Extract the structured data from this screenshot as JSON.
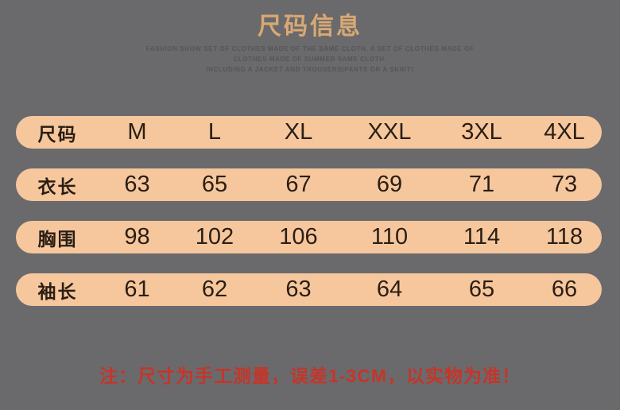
{
  "header": {
    "title": "尺码信息",
    "subtitle_lines": [
      "FASHION SHOW  SET OF CLOTHES MADE OF THE SAME CLOTH. A SET OF CLOTHES MADE OF",
      "CLOTHES MADE OF SUMMER SAME CLOTH.",
      "INCLUDING A JACKET AND TROUSERS(PANTS OR A SKIRT)"
    ]
  },
  "chart_data": {
    "type": "table",
    "title": "尺码信息",
    "header_row": [
      "尺码",
      "M",
      "L",
      "XL",
      "XXL",
      "3XL",
      "4XL"
    ],
    "rows": [
      [
        "衣长",
        "63",
        "65",
        "67",
        "69",
        "71",
        "73"
      ],
      [
        "胸围",
        "98",
        "102",
        "106",
        "110",
        "114",
        "118"
      ],
      [
        "袖长",
        "61",
        "62",
        "63",
        "64",
        "65",
        "66"
      ]
    ]
  },
  "footer": {
    "note": "注：尺寸为手工测量，误差1-3CM，以实物为准！"
  },
  "colors": {
    "background": "#6a6a6c",
    "pill": "#f6c79d",
    "pill_text": "#2a1e14",
    "title": "#d9a873",
    "subtitle": "#55555a",
    "note": "#c5352a"
  }
}
